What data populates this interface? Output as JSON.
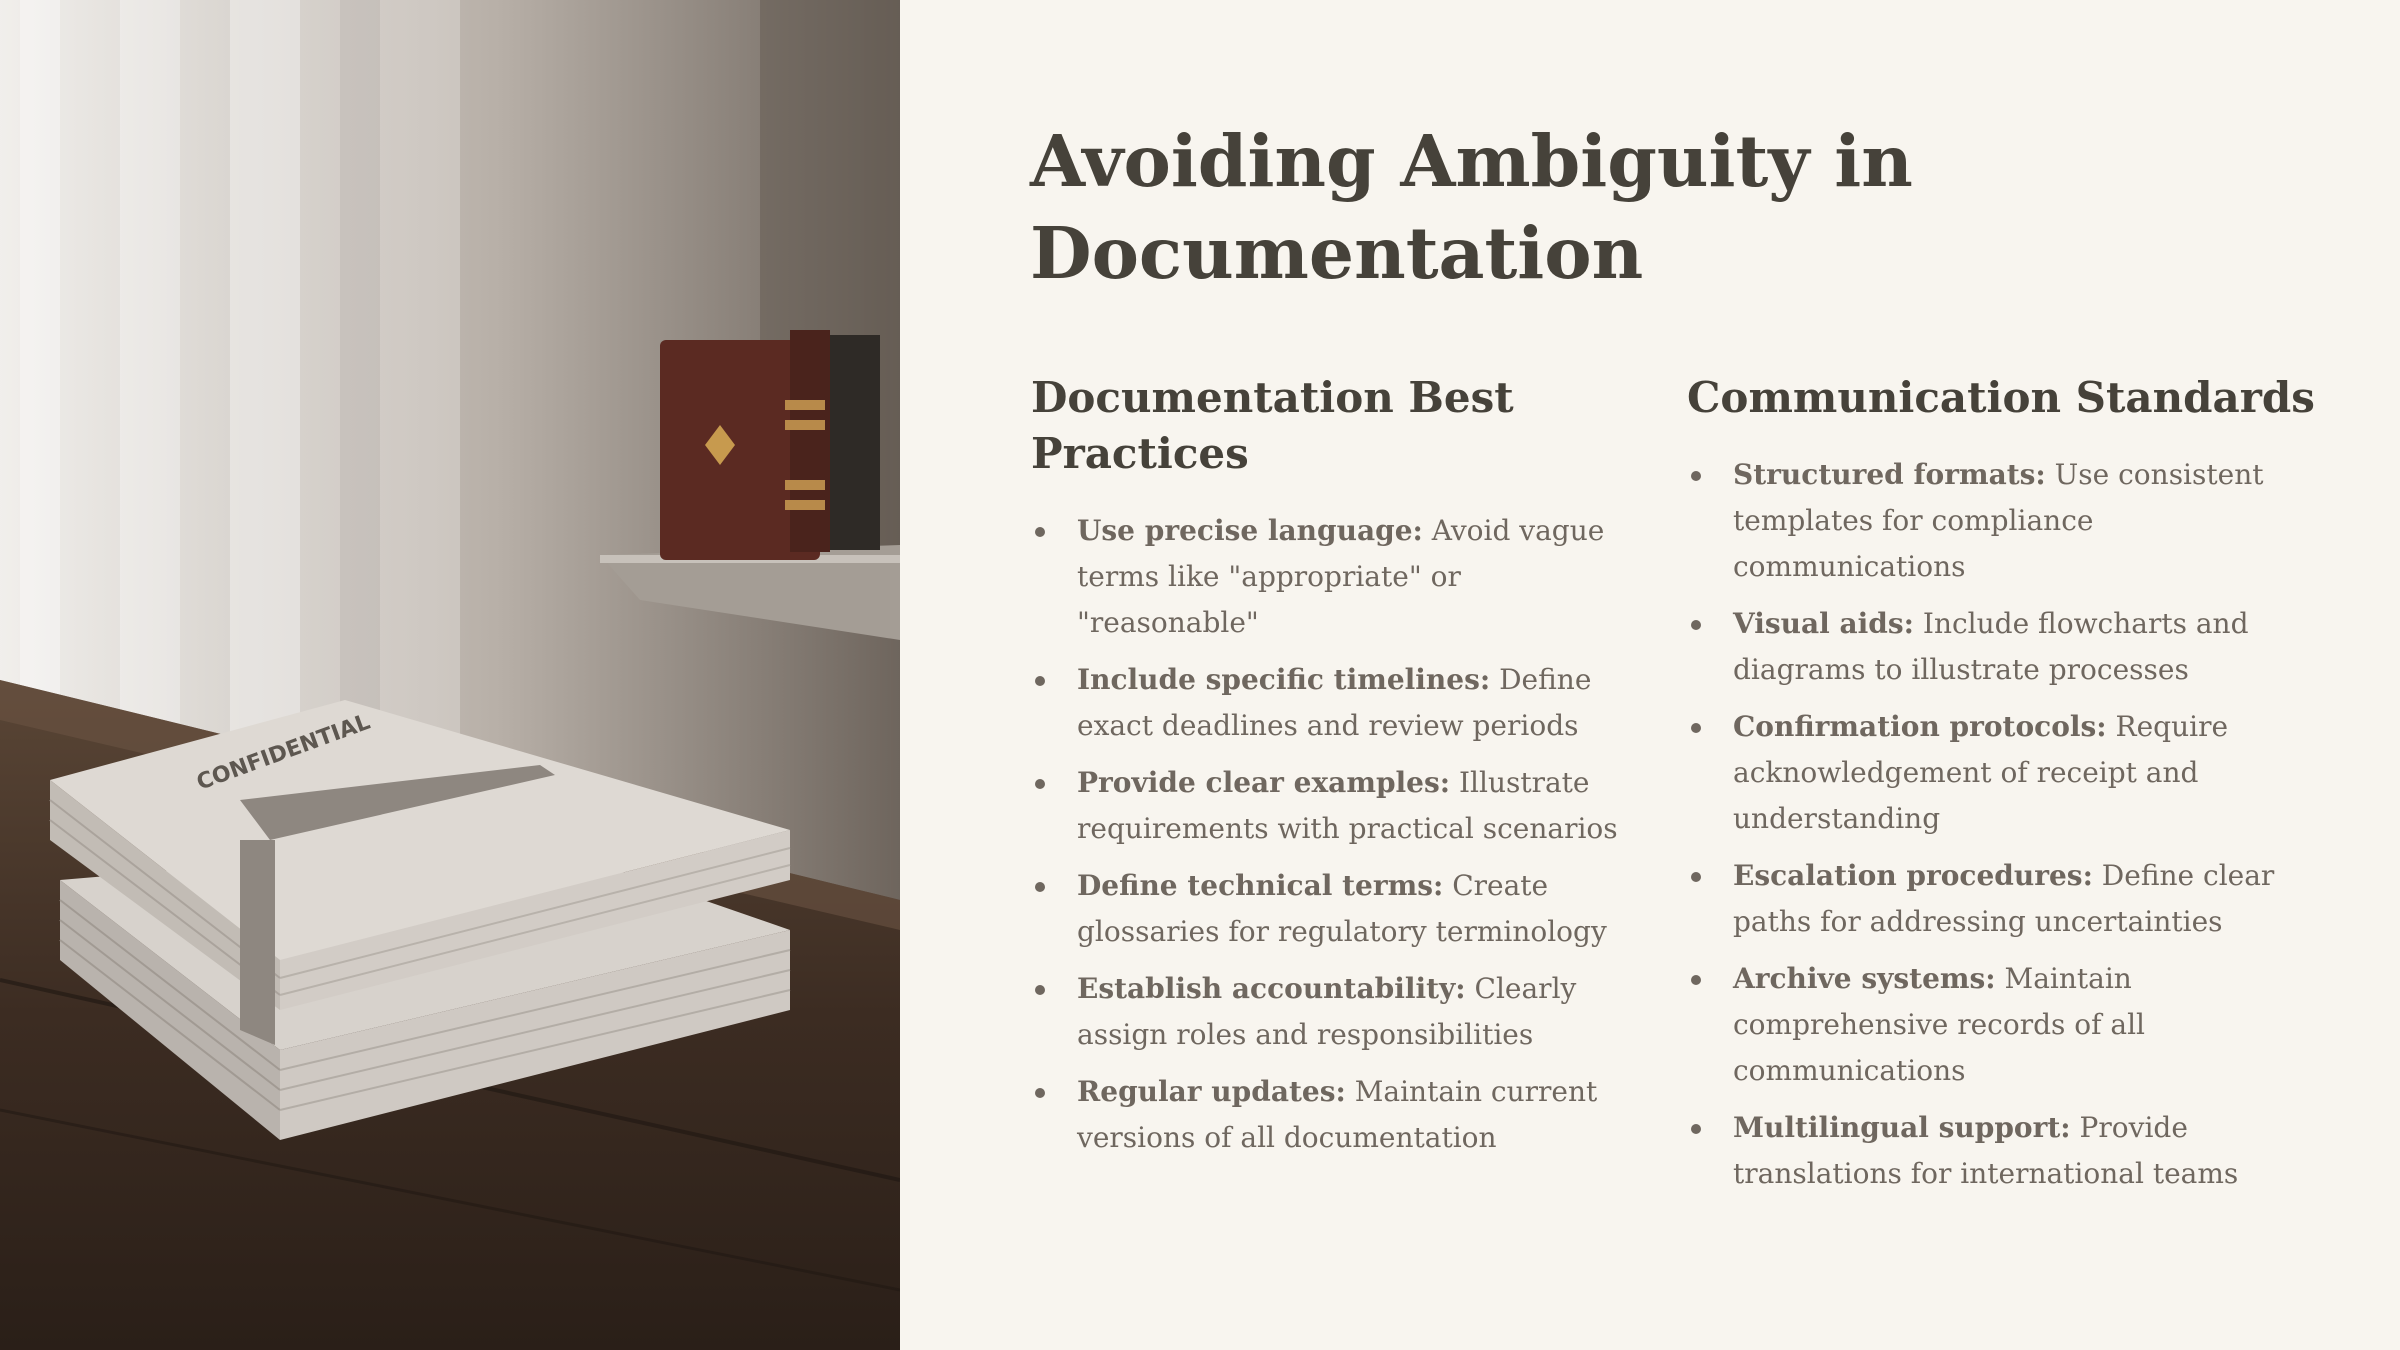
{
  "slide": {
    "title": "Avoiding Ambiguity in Documentation",
    "image": {
      "subject": "stack-of-confidential-documents-on-wooden-desk",
      "label": "CONFIDENTIAL"
    },
    "columns": [
      {
        "heading": "Documentation Best Practices",
        "items": [
          {
            "term": "Use precise language:",
            "text": " Avoid vague terms like \"appropriate\" or \"reasonable\""
          },
          {
            "term": "Include specific timelines:",
            "text": " Define exact deadlines and review periods"
          },
          {
            "term": "Provide clear examples:",
            "text": " Illustrate requirements with practical scenarios"
          },
          {
            "term": "Define technical terms:",
            "text": " Create glossaries for regulatory terminology"
          },
          {
            "term": "Establish accountability:",
            "text": " Clearly assign roles and responsibilities"
          },
          {
            "term": "Regular updates:",
            "text": " Maintain current versions of all documentation"
          }
        ]
      },
      {
        "heading": "Communication Standards",
        "items": [
          {
            "term": "Structured formats:",
            "text": " Use consistent templates for compliance communications"
          },
          {
            "term": "Visual aids:",
            "text": " Include flowcharts and diagrams to illustrate processes"
          },
          {
            "term": "Confirmation protocols:",
            "text": " Require acknowledgement of receipt and understanding"
          },
          {
            "term": "Escalation procedures:",
            "text": " Define clear paths for addressing uncertainties"
          },
          {
            "term": "Archive systems:",
            "text": " Maintain comprehensive records of all communications"
          },
          {
            "term": "Multilingual support:",
            "text": " Provide translations for international teams"
          }
        ]
      }
    ]
  },
  "colors": {
    "background": "#f8f5ef",
    "heading": "#46423a",
    "body_text": "#6f675f"
  }
}
